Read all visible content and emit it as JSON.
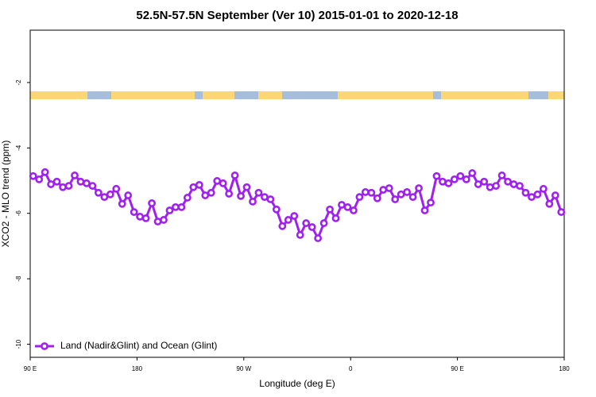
{
  "chart_data": {
    "type": "line",
    "title": "52.5N-57.5N September (Ver 10)   2015-01-01 to 2020-12-18",
    "x_label": "Longitude (deg E)",
    "y_label": "XCO2 - MLO trend (ppm)",
    "xlim": [
      90,
      540
    ],
    "ylim": [
      -10.4,
      -0.4
    ],
    "xticks": [
      {
        "value": 90,
        "label": "90 E"
      },
      180,
      {
        "value": 270,
        "label": "90 W"
      },
      {
        "value": 360,
        "label": "0"
      },
      {
        "value": 450,
        "label": "90 E"
      },
      {
        "value": 540,
        "label": "180"
      }
    ],
    "yticks": [
      -10,
      -8,
      -6,
      -4,
      -2
    ],
    "legend": "lower left",
    "x": [
      92.5,
      97.5,
      102.5,
      107.5,
      112.5,
      117.5,
      122.5,
      127.5,
      132.5,
      137.5,
      142.5,
      147.5,
      152.5,
      157.5,
      162.5,
      167.5,
      172.5,
      177.5,
      182.5,
      187.5,
      192.5,
      197.5,
      202.5,
      207.5,
      212.5,
      217.5,
      222.5,
      227.5,
      232.5,
      237.5,
      242.5,
      247.5,
      252.5,
      257.5,
      262.5,
      267.5,
      272.5,
      277.5,
      282.5,
      287.5,
      292.5,
      297.5,
      302.5,
      307.5,
      312.5,
      317.5,
      322.5,
      327.5,
      332.5,
      337.5,
      342.5,
      347.5,
      352.5,
      357.5,
      362.5,
      367.5,
      372.5,
      377.5,
      382.5,
      387.5,
      392.5,
      397.5,
      402.5,
      407.5,
      412.5,
      417.5,
      422.5,
      427.5,
      432.5,
      437.5,
      442.5,
      447.5,
      452.5,
      457.5,
      462.5,
      467.5,
      472.5,
      477.5,
      482.5,
      487.5,
      492.5,
      497.5,
      502.5,
      507.5,
      512.5,
      517.5,
      522.5,
      527.5,
      532.5,
      537.5
    ],
    "series": [
      {
        "name": "Land (Nadir&Glint) and Ocean (Glint)",
        "color": "#a020f0",
        "values": [
          -4.86,
          -4.96,
          -4.74,
          -5.11,
          -5.03,
          -5.2,
          -5.16,
          -4.84,
          -5.03,
          -5.08,
          -5.16,
          -5.37,
          -5.5,
          -5.42,
          -5.25,
          -5.71,
          -5.45,
          -5.96,
          -6.1,
          -6.15,
          -5.69,
          -6.25,
          -6.2,
          -5.91,
          -5.81,
          -5.81,
          -5.52,
          -5.2,
          -5.13,
          -5.45,
          -5.37,
          -5.01,
          -5.08,
          -5.4,
          -4.84,
          -5.47,
          -5.2,
          -5.64,
          -5.37,
          -5.5,
          -5.57,
          -5.88,
          -6.39,
          -6.2,
          -6.08,
          -6.66,
          -6.3,
          -6.42,
          -6.76,
          -6.3,
          -5.88,
          -6.15,
          -5.74,
          -5.81,
          -5.91,
          -5.5,
          -5.35,
          -5.37,
          -5.54,
          -5.28,
          -5.23,
          -5.57,
          -5.42,
          -5.35,
          -5.5,
          -5.23,
          -5.91,
          -5.67,
          -4.86,
          -5.03,
          -5.08,
          -4.96,
          -4.86,
          -4.96,
          -4.77,
          -5.11,
          -5.03,
          -5.2,
          -5.16,
          -4.84,
          -5.03,
          -5.11,
          -5.16,
          -5.37,
          -5.5,
          -5.42,
          -5.25,
          -5.71,
          -5.45,
          -5.96
        ]
      }
    ]
  }
}
